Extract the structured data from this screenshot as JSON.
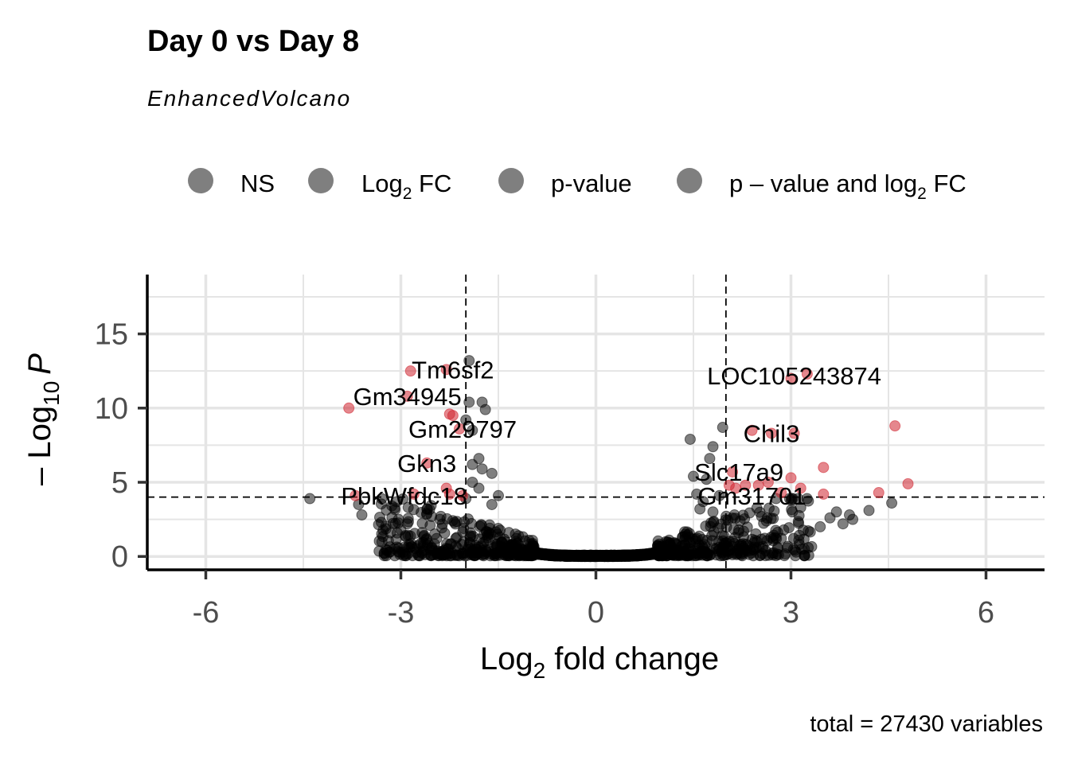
{
  "chart_data": {
    "type": "scatter",
    "title": "Day 0 vs Day 8",
    "subtitle": "EnhancedVolcano",
    "caption": "total = 27430 variables",
    "xlabel": {
      "main": "Log",
      "sub": "2",
      "rest": " fold change"
    },
    "ylabel": {
      "prefix": "– Log",
      "sub": "10",
      "rest": "P"
    },
    "xlim": [
      -6.9,
      6.9
    ],
    "ylim": [
      -0.9,
      19
    ],
    "x_ticks": [
      -6,
      -3,
      0,
      3,
      6
    ],
    "x_tick_labels": [
      "-6",
      "-3",
      "0",
      "3",
      "6"
    ],
    "y_ticks": [
      0,
      5,
      10,
      15
    ],
    "y_tick_labels": [
      "0",
      "5",
      "10",
      "15"
    ],
    "grid": true,
    "cutoffs": {
      "log2fc": [
        -2,
        2
      ],
      "neglog10p": 4
    },
    "legend_position": "top",
    "legend": [
      {
        "key": "NS",
        "label": "NS",
        "color": "#000000"
      },
      {
        "key": "FC",
        "label_main": "Log",
        "label_sub": "2",
        "label_rest": " FC",
        "color": "#000000"
      },
      {
        "key": "P",
        "label": "p-value",
        "color": "#000000"
      },
      {
        "key": "FC_P",
        "label_main": "p – value and log",
        "label_sub": "2",
        "label_rest": " FC",
        "color": "#d0252f"
      }
    ],
    "colors": {
      "ns": "#000000",
      "sig": "#d0252f",
      "grid": "#e5e5e5",
      "axis": "#000000"
    },
    "series": [
      {
        "name": "p – value and log2 FC",
        "points": [
          [
            -3.8,
            10.0
          ],
          [
            -2.9,
            10.8
          ],
          [
            -2.85,
            12.5
          ],
          [
            -2.3,
            12.6
          ],
          [
            -2.25,
            9.6
          ],
          [
            -2.2,
            9.5
          ],
          [
            -2.1,
            8.6
          ],
          [
            -2.6,
            6.3
          ],
          [
            -2.3,
            4.6
          ],
          [
            -2.25,
            4.2
          ],
          [
            -2.05,
            4.1
          ],
          [
            -3.7,
            4.1
          ],
          [
            -2.8,
            4.2
          ],
          [
            3.0,
            12.0
          ],
          [
            3.25,
            12.3
          ],
          [
            2.4,
            8.5
          ],
          [
            2.7,
            8.3
          ],
          [
            3.05,
            8.3
          ],
          [
            4.6,
            8.8
          ],
          [
            2.1,
            5.7
          ],
          [
            2.3,
            4.8
          ],
          [
            2.5,
            4.8
          ],
          [
            2.15,
            4.6
          ],
          [
            2.65,
            5.0
          ],
          [
            3.0,
            5.3
          ],
          [
            3.5,
            6.0
          ],
          [
            4.8,
            4.9
          ],
          [
            4.35,
            4.3
          ],
          [
            3.5,
            4.2
          ],
          [
            2.85,
            4.3
          ],
          [
            2.05,
            4.8
          ],
          [
            3.15,
            4.6
          ]
        ]
      }
    ],
    "labels": [
      {
        "text": "Tm6sf2",
        "x": -2.2,
        "y": 12.6
      },
      {
        "text": "Gm34945",
        "x": -2.9,
        "y": 10.8
      },
      {
        "text": "Gm29797",
        "x": -2.05,
        "y": 8.6
      },
      {
        "text": "Gkn3",
        "x": -2.6,
        "y": 6.3
      },
      {
        "text": "PbkWfdc18",
        "x": -2.95,
        "y": 4.1
      },
      {
        "text": "LOC105243874",
        "x": 3.05,
        "y": 12.2
      },
      {
        "text": "Chil3",
        "x": 2.7,
        "y": 8.3
      },
      {
        "text": "Slc17a9",
        "x": 2.2,
        "y": 5.7
      },
      {
        "text": "Gm31701",
        "x": 2.4,
        "y": 4.1
      }
    ]
  }
}
